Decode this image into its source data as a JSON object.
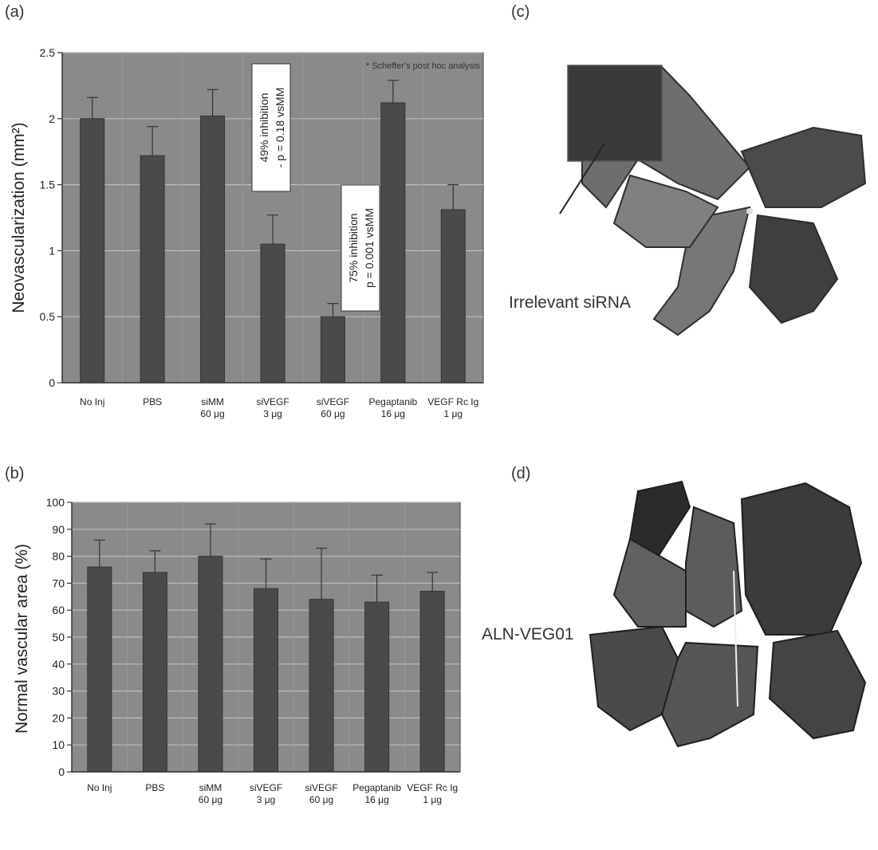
{
  "panels": {
    "a": "(a)",
    "b": "(b)",
    "c": "(c)",
    "d": "(d)"
  },
  "photos": {
    "c_caption": "Irrelevant siRNA",
    "d_caption": "ALN-VEG01"
  },
  "colors": {
    "plot_bg": "#8a8a8a",
    "bar": "#4a4a4a",
    "grid": "#bdbdbd",
    "tissue_dark": "#2a2a2a",
    "tissue_mid": "#6a6a6a"
  },
  "chart_data": [
    {
      "type": "bar",
      "panel": "a",
      "categories": [
        "No Inj",
        "PBS",
        "siMM\n60 μg",
        "siVEGF\n3 μg",
        "siVEGF\n60 μg",
        "Pegaptanib\n16 μg",
        "VEGF Rc Ig\n1 μg"
      ],
      "values": [
        2.0,
        1.72,
        2.02,
        1.05,
        0.5,
        2.12,
        1.31
      ],
      "errors": [
        0.16,
        0.22,
        0.2,
        0.22,
        0.1,
        0.17,
        0.19
      ],
      "ylabel": "Neovascularization (mm²)",
      "ylim": [
        0,
        2.5
      ],
      "yticks": [
        "0",
        "0.5",
        "1",
        "1.5",
        "2",
        "2.5"
      ],
      "grid": true,
      "annotations": [
        {
          "lines": [
            "49% inhibition",
            "- p = 0.18 vsMM"
          ]
        },
        {
          "lines": [
            "75% inhibition",
            "p = 0.001 vsMM"
          ]
        },
        {
          "lines": [
            "* Scheffer's post hoc analysis"
          ]
        }
      ]
    },
    {
      "type": "bar",
      "panel": "b",
      "categories": [
        "No Inj",
        "PBS",
        "siMM\n60 μg",
        "siVEGF\n3 μg",
        "siVEGF\n60 μg",
        "Pegaptanib\n16 μg",
        "VEGF Rc Ig\n1 μg"
      ],
      "values": [
        76,
        74,
        80,
        68,
        64,
        63,
        67
      ],
      "errors": [
        10,
        8,
        12,
        11,
        19,
        10,
        7
      ],
      "ylabel": "Normal vascular area (%)",
      "ylim": [
        0,
        100
      ],
      "yticks": [
        "0",
        "10",
        "20",
        "30",
        "40",
        "50",
        "60",
        "70",
        "80",
        "90",
        "100"
      ],
      "grid": true
    }
  ]
}
